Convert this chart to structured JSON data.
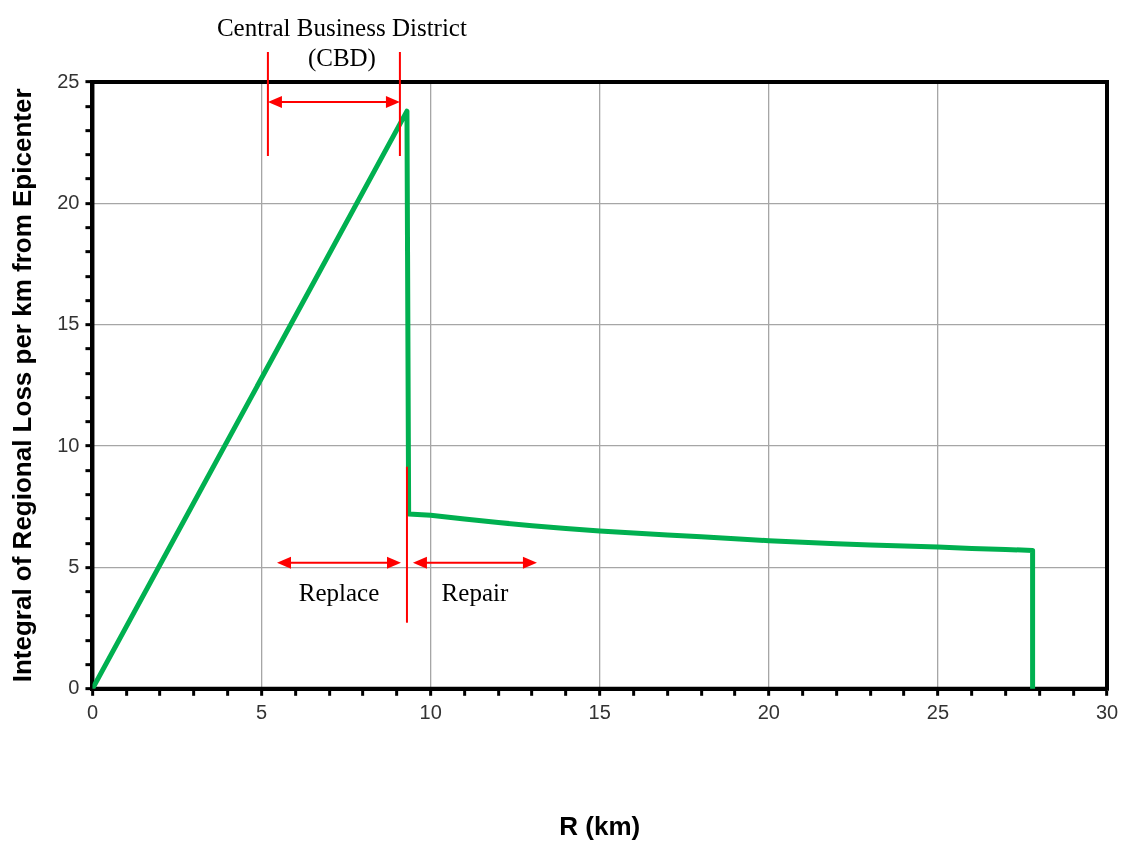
{
  "chart_data": {
    "type": "line",
    "xlabel": "R (km)",
    "ylabel": "Integral of Regional Loss per km from Epicenter",
    "series": [
      {
        "color": "#00b050",
        "x": [
          0,
          9.3,
          9.35,
          10,
          11,
          12,
          13,
          14,
          15,
          16,
          17,
          18,
          19,
          20,
          21,
          22,
          23,
          24,
          25,
          26,
          27,
          27.8,
          27.8
        ],
        "values": [
          0,
          23.8,
          7.2,
          7.15,
          7.0,
          6.85,
          6.72,
          6.6,
          6.5,
          6.42,
          6.34,
          6.26,
          6.18,
          6.1,
          6.04,
          5.98,
          5.92,
          5.88,
          5.84,
          5.78,
          5.74,
          5.7,
          0
        ]
      }
    ],
    "xlim": [
      0,
      30
    ],
    "ylim": [
      0,
      25
    ],
    "xticks": [
      0,
      {
        "value": 1,
        "label": null
      },
      {
        "value": 2,
        "label": null
      },
      {
        "value": 3,
        "label": null
      },
      {
        "value": 4,
        "label": null
      },
      5,
      {
        "value": 6,
        "label": null
      },
      {
        "value": 7,
        "label": null
      },
      {
        "value": 8,
        "label": null
      },
      {
        "value": 9,
        "label": null
      },
      10,
      {
        "value": 11,
        "label": null
      },
      {
        "value": 12,
        "label": null
      },
      {
        "value": 13,
        "label": null
      },
      {
        "value": 14,
        "label": null
      },
      15,
      {
        "value": 16,
        "label": null
      },
      {
        "value": 17,
        "label": null
      },
      {
        "value": 18,
        "label": null
      },
      {
        "value": 19,
        "label": null
      },
      20,
      {
        "value": 21,
        "label": null
      },
      {
        "value": 22,
        "label": null
      },
      {
        "value": 23,
        "label": null
      },
      {
        "value": 24,
        "label": null
      },
      25,
      {
        "value": 26,
        "label": null
      },
      {
        "value": 27,
        "label": null
      },
      {
        "value": 28,
        "label": null
      },
      {
        "value": 29,
        "label": null
      },
      30
    ],
    "yticks": [
      0,
      {
        "value": 1,
        "label": null
      },
      {
        "value": 2,
        "label": null
      },
      {
        "value": 3,
        "label": null
      },
      {
        "value": 4,
        "label": null
      },
      5,
      {
        "value": 6,
        "label": null
      },
      {
        "value": 7,
        "label": null
      },
      {
        "value": 8,
        "label": null
      },
      {
        "value": 9,
        "label": null
      },
      10,
      {
        "value": 11,
        "label": null
      },
      {
        "value": 12,
        "label": null
      },
      {
        "value": 13,
        "label": null
      },
      {
        "value": 14,
        "label": null
      },
      15,
      {
        "value": 16,
        "label": null
      },
      {
        "value": 17,
        "label": null
      },
      {
        "value": 18,
        "label": null
      },
      {
        "value": 19,
        "label": null
      },
      20,
      {
        "value": 21,
        "label": null
      },
      {
        "value": 22,
        "label": null
      },
      {
        "value": 23,
        "label": null
      },
      {
        "value": 24,
        "label": null
      },
      25
    ],
    "annotations": [
      "Central Business District (CBD)",
      "Replace",
      "Repair"
    ],
    "ref_lines": [
      {
        "axis": "x",
        "value": 9.3,
        "color": "#ff0000"
      }
    ],
    "grid": true,
    "marker": "none",
    "line_style": "solid"
  }
}
